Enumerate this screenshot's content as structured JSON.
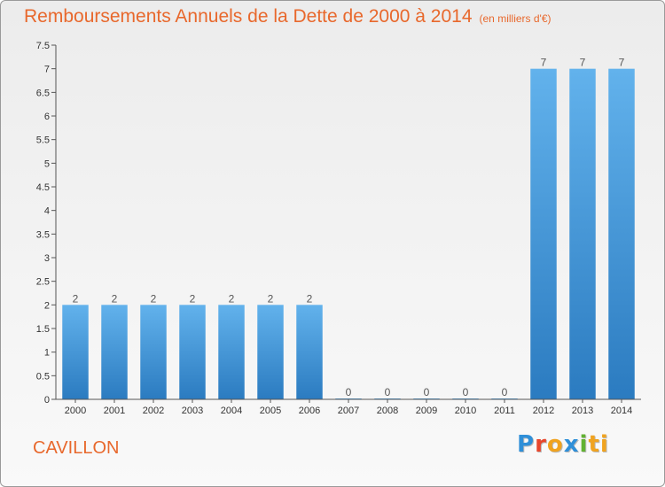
{
  "title": "Remboursements Annuels de la Dette de 2000 à 2014",
  "units": "(en milliers d'€)",
  "commune": "CAVILLON",
  "logo_letters": [
    "P",
    "r",
    "o",
    "x",
    "i",
    "ti"
  ],
  "colors": {
    "title": "#e8682c",
    "bar_light": "#62b2ec",
    "bar_dark": "#2b7bc0"
  },
  "chart_data": {
    "type": "bar",
    "title": "Remboursements Annuels de la Dette de 2000 à 2014",
    "ylabel": "",
    "xlabel": "",
    "categories": [
      "2000",
      "2001",
      "2002",
      "2003",
      "2004",
      "2005",
      "2006",
      "2007",
      "2008",
      "2009",
      "2010",
      "2011",
      "2012",
      "2013",
      "2014"
    ],
    "values": [
      2,
      2,
      2,
      2,
      2,
      2,
      2,
      0,
      0,
      0,
      0,
      0,
      7,
      7,
      7
    ],
    "value_labels": [
      "2",
      "2",
      "2",
      "2",
      "2",
      "2",
      "2",
      "0",
      "0",
      "0",
      "0",
      "0",
      "7",
      "7",
      "7"
    ],
    "ylim": [
      0,
      7.5
    ],
    "yticks": [
      0,
      0.5,
      1,
      1.5,
      2,
      2.5,
      3,
      3.5,
      4,
      4.5,
      5,
      5.5,
      6,
      6.5,
      7,
      7.5
    ],
    "ytick_labels": [
      "0",
      "0.5",
      "1",
      "1.5",
      "2",
      "2.5",
      "3",
      "3.5",
      "4",
      "4.5",
      "5",
      "5.5",
      "6",
      "6.5",
      "7",
      "7.5"
    ],
    "grid": false
  }
}
